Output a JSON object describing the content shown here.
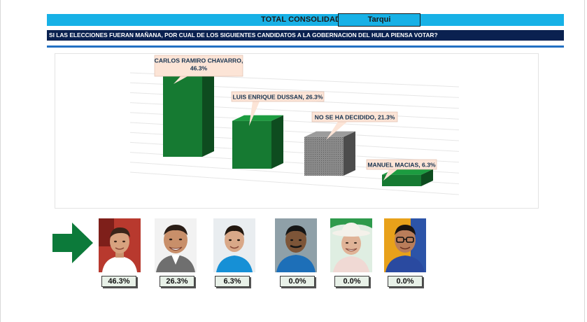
{
  "header": {
    "title": "TOTAL CONSOLIDADO",
    "location": "Tarqui",
    "question": "SI LAS ELECCIONES FUERAN MAÑANA, POR CUAL DE LOS SIGUIENTES CANDIDATOS A LA GOBERNACION DEL HUILA PIENSA VOTAR?"
  },
  "colors": {
    "title_bar": "#17b1e6",
    "question_bar": "#0a2150",
    "bar_green": "#167a32",
    "bar_gray": "#7a7a7a"
  },
  "chart_data": {
    "type": "bar",
    "categories": [
      "CARLOS RAMIRO CHAVARRO",
      "LUIS ENRIQUE DUSSAN",
      "NO SE HA DECIDIDO",
      "MANUEL MACIAS"
    ],
    "values": [
      46.3,
      26.3,
      21.3,
      6.3
    ],
    "unit": "%",
    "data_labels": [
      "CARLOS RAMIRO CHAVARRO,\n46.3%",
      "LUIS ENRIQUE DUSSAN, 26.3%",
      "NO SE HA DECIDIDO, 21.3%",
      "MANUEL MACIAS, 6.3%"
    ],
    "bar_colors": [
      "#167a32",
      "#167a32",
      "#7a7a7a",
      "#167a32"
    ],
    "style": "3d-columns",
    "grid": true,
    "legend": "none"
  },
  "candidates": [
    {
      "photo": "candidate-photo-1",
      "percent": "46.3%"
    },
    {
      "photo": "candidate-photo-2",
      "percent": "26.3%"
    },
    {
      "photo": "candidate-photo-3",
      "percent": "6.3%"
    },
    {
      "photo": "candidate-photo-4",
      "percent": "0.0%"
    },
    {
      "photo": "candidate-photo-5",
      "percent": "0.0%"
    },
    {
      "photo": "candidate-photo-6",
      "percent": "0.0%"
    }
  ],
  "icons": {
    "pointer": "right-arrow-icon"
  }
}
